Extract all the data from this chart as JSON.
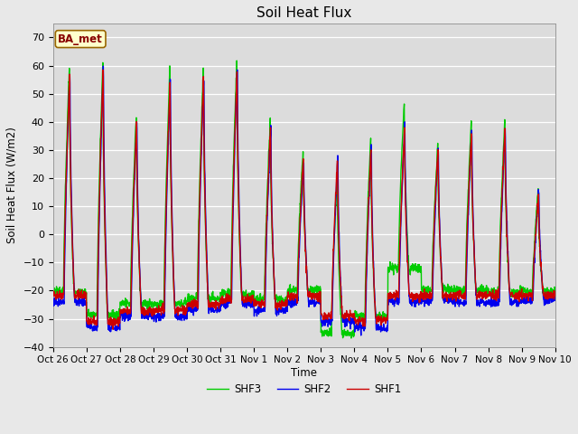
{
  "title": "Soil Heat Flux",
  "ylabel": "Soil Heat Flux (W/m2)",
  "xlabel": "Time",
  "ylim": [
    -40,
    75
  ],
  "yticks": [
    -40,
    -30,
    -20,
    -10,
    0,
    10,
    20,
    30,
    40,
    50,
    60,
    70
  ],
  "bg_color": "#e8e8e8",
  "plot_bg_color": "#dcdcdc",
  "legend_label": "BA_met",
  "series_labels": [
    "SHF1",
    "SHF2",
    "SHF3"
  ],
  "series_colors": [
    "#cc0000",
    "#0000ee",
    "#00cc00"
  ],
  "line_width": 1.0,
  "n_days": 15,
  "x_tick_labels": [
    "Oct 26",
    "Oct 27",
    "Oct 28",
    "Oct 29",
    "Oct 30",
    "Oct 31",
    "Nov 1",
    "Nov 2",
    "Nov 3",
    "Nov 4",
    "Nov 5",
    "Nov 6",
    "Nov 7",
    "Nov 8",
    "Nov 9",
    "Nov 10"
  ],
  "points_per_day": 144,
  "figwidth": 6.4,
  "figheight": 4.8,
  "dpi": 100
}
